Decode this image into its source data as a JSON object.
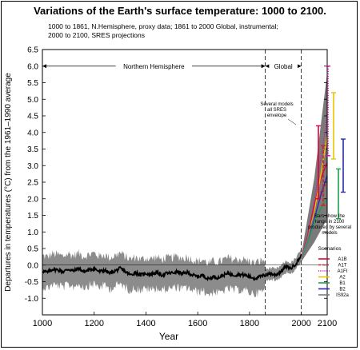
{
  "chart_data": {
    "type": "line",
    "title": "Variations of the Earth's surface temperature: 1000 to 2100.",
    "subtitle": [
      "1000 to 1861, N.Hemisphere, proxy data; 1861 to 2000 Global, instrumental;",
      "2000 to 2100, SRES projections"
    ],
    "xlabel": "Year",
    "ylabel": "Departures in temperatures (°C) from the 1961–1990 average",
    "xlim": [
      1000,
      2100
    ],
    "ylim": [
      -1.5,
      6.5
    ],
    "x_ticks": [
      1000,
      1200,
      1400,
      1600,
      1800,
      2000,
      2100
    ],
    "y_ticks": [
      -1.0,
      -0.5,
      0.0,
      0.5,
      1.0,
      1.5,
      2.0,
      2.5,
      3.0,
      3.5,
      4.0,
      4.5,
      5.0,
      5.5,
      6.0,
      6.5
    ],
    "regions": [
      {
        "label": "Northern Hemisphere",
        "x": [
          1000,
          1861
        ]
      },
      {
        "label": "Global",
        "x": [
          1861,
          2000
        ]
      }
    ],
    "vertical_dashed_lines": [
      1861,
      2000
    ],
    "reconstruction": {
      "x": [
        1000,
        1020,
        1040,
        1060,
        1080,
        1100,
        1120,
        1140,
        1160,
        1180,
        1200,
        1220,
        1240,
        1260,
        1280,
        1300,
        1320,
        1340,
        1360,
        1380,
        1400,
        1420,
        1440,
        1460,
        1480,
        1500,
        1520,
        1540,
        1560,
        1580,
        1600,
        1620,
        1640,
        1660,
        1680,
        1700,
        1720,
        1740,
        1760,
        1780,
        1800,
        1820,
        1840,
        1860,
        1880,
        1900,
        1920,
        1940,
        1960,
        1980,
        2000
      ],
      "y": [
        -0.18,
        -0.22,
        -0.12,
        -0.15,
        -0.2,
        -0.12,
        -0.18,
        -0.1,
        -0.2,
        -0.15,
        -0.1,
        -0.2,
        -0.15,
        -0.25,
        -0.18,
        -0.1,
        -0.2,
        -0.3,
        -0.22,
        -0.3,
        -0.25,
        -0.28,
        -0.22,
        -0.3,
        -0.25,
        -0.24,
        -0.2,
        -0.26,
        -0.22,
        -0.3,
        -0.35,
        -0.3,
        -0.42,
        -0.35,
        -0.38,
        -0.3,
        -0.25,
        -0.3,
        -0.28,
        -0.3,
        -0.35,
        -0.4,
        -0.35,
        -0.3,
        -0.25,
        -0.3,
        -0.2,
        -0.05,
        -0.1,
        0.05,
        0.3
      ],
      "uncertainty": 0.6
    },
    "projection_envelope": {
      "x": [
        2000,
        2100
      ],
      "low": [
        0.1,
        1.4
      ],
      "high": [
        0.3,
        5.8
      ]
    },
    "annotations": [
      "Several models all SRES envelope",
      "Bars show the range in 2100 produced by several models"
    ],
    "legend": {
      "title": "Scenarios",
      "placement": "bottom-right",
      "entries": [
        {
          "name": "A1B",
          "color": "#e0003c",
          "style": "solid"
        },
        {
          "name": "A1T",
          "color": "#d42020",
          "style": "dashed"
        },
        {
          "name": "A1FI",
          "color": "#c81a9c",
          "style": "dotted"
        },
        {
          "name": "A2",
          "color": "#e8c400",
          "style": "solid"
        },
        {
          "name": "B1",
          "color": "#1aa050",
          "style": "solid"
        },
        {
          "name": "B2",
          "color": "#2a2ab0",
          "style": "solid"
        },
        {
          "name": "IS92a",
          "color": "#7c7c7c",
          "style": "solid"
        }
      ]
    },
    "series": [
      {
        "name": "A1B",
        "x": [
          2000,
          2025,
          2050,
          2075,
          2100
        ],
        "values": [
          0.2,
          0.9,
          1.8,
          2.6,
          3.1
        ]
      },
      {
        "name": "A1T",
        "x": [
          2000,
          2025,
          2050,
          2075,
          2100
        ],
        "values": [
          0.2,
          0.9,
          1.7,
          2.2,
          2.5
        ]
      },
      {
        "name": "A1FI",
        "x": [
          2000,
          2025,
          2050,
          2075,
          2100
        ],
        "values": [
          0.2,
          0.9,
          1.9,
          3.2,
          4.5
        ]
      },
      {
        "name": "A2",
        "x": [
          2000,
          2025,
          2050,
          2075,
          2100
        ],
        "values": [
          0.2,
          0.8,
          1.6,
          2.7,
          3.9
        ]
      },
      {
        "name": "B1",
        "x": [
          2000,
          2025,
          2050,
          2075,
          2100
        ],
        "values": [
          0.2,
          0.7,
          1.3,
          1.7,
          2.0
        ]
      },
      {
        "name": "B2",
        "x": [
          2000,
          2025,
          2050,
          2075,
          2100
        ],
        "values": [
          0.2,
          0.8,
          1.4,
          2.1,
          2.7
        ]
      },
      {
        "name": "IS92a",
        "x": [
          2000,
          2025,
          2050,
          2075,
          2100
        ],
        "values": [
          0.2,
          0.8,
          1.5,
          2.3,
          2.9
        ]
      }
    ],
    "range_bars_2100": [
      {
        "name": "A1B",
        "low": 2.0,
        "high": 4.2,
        "color": "#e0003c"
      },
      {
        "name": "A1T",
        "low": 1.8,
        "high": 3.6,
        "color": "#d42020"
      },
      {
        "name": "A1FI",
        "low": 3.3,
        "high": 6.0,
        "color": "#c81a9c"
      },
      {
        "name": "A2",
        "low": 3.2,
        "high": 5.2,
        "color": "#e8c400"
      },
      {
        "name": "B1",
        "low": 1.4,
        "high": 2.9,
        "color": "#1aa050"
      },
      {
        "name": "B2",
        "low": 2.2,
        "high": 3.8,
        "color": "#2a2ab0"
      }
    ]
  }
}
